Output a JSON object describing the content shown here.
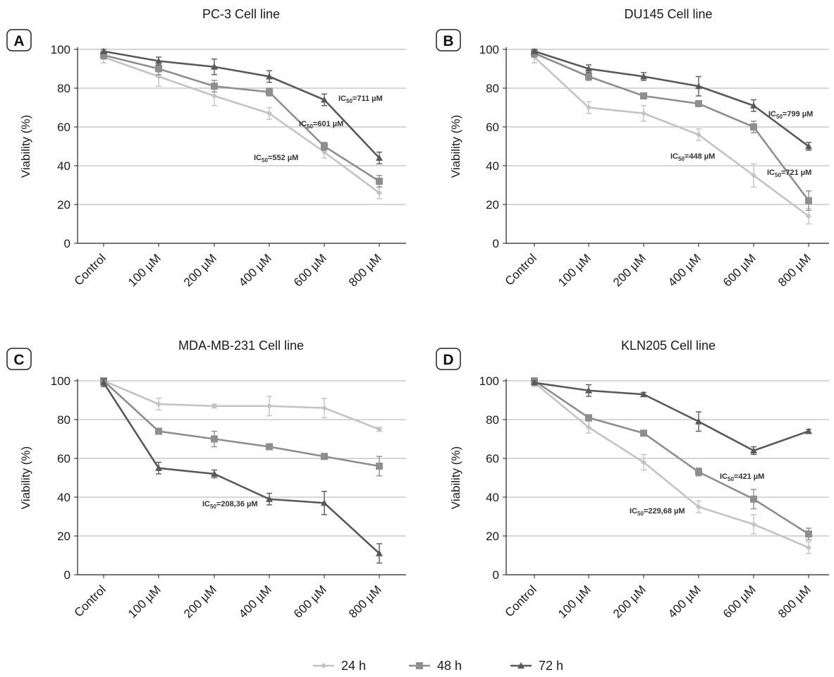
{
  "legend": [
    {
      "label": "24 h",
      "color": "#c3c3c3",
      "marker": "diamond"
    },
    {
      "label": "48 h",
      "color": "#8e8e8e",
      "marker": "square"
    },
    {
      "label": "72 h",
      "color": "#595959",
      "marker": "triangle"
    }
  ],
  "chart_data": [
    {
      "type": "line",
      "panel": "A",
      "title": "PC-3 Cell line",
      "ylabel": "Viability (%)",
      "ylim": [
        0,
        100
      ],
      "yticks": [
        "0",
        "20",
        "40",
        "60",
        "80",
        "100"
      ],
      "categories": [
        "Control",
        "100 µM",
        "200 µM",
        "400 µM",
        "600 µM",
        "800 µM"
      ],
      "grid": true,
      "series": [
        {
          "name": "24 h",
          "values": [
            96,
            86,
            76,
            67,
            47,
            26
          ],
          "errors": [
            3,
            5,
            5,
            3,
            3,
            3
          ]
        },
        {
          "name": "48 h",
          "values": [
            97,
            90,
            81,
            78,
            50,
            32
          ],
          "errors": [
            2,
            3,
            3,
            2,
            2,
            3
          ]
        },
        {
          "name": "72 h",
          "values": [
            99,
            94,
            91,
            86,
            74,
            44
          ],
          "errors": [
            1,
            2,
            4,
            3,
            3,
            3
          ]
        }
      ],
      "annotations": [
        {
          "base": "IC",
          "sub": "50",
          "rest": "=711 µM"
        },
        {
          "base": "IC",
          "sub": "50",
          "rest": "=601 µM"
        },
        {
          "base": "IC",
          "sub": "50",
          "rest": "=552 µM"
        }
      ]
    },
    {
      "type": "line",
      "panel": "B",
      "title": "DU145 Cell line",
      "ylabel": "Viability (%)",
      "ylim": [
        0,
        100
      ],
      "yticks": [
        "0",
        "20",
        "40",
        "60",
        "80",
        "100"
      ],
      "categories": [
        "Control",
        "100 µM",
        "200 µM",
        "400 µM",
        "600 µM",
        "800 µM"
      ],
      "grid": true,
      "series": [
        {
          "name": "24 h",
          "values": [
            96,
            70,
            67,
            56,
            35,
            14
          ],
          "errors": [
            3,
            3,
            4,
            3,
            6,
            4
          ]
        },
        {
          "name": "48 h",
          "values": [
            98,
            86,
            76,
            72,
            60,
            22
          ],
          "errors": [
            2,
            2,
            1,
            1,
            3,
            5
          ]
        },
        {
          "name": "72 h",
          "values": [
            99,
            90,
            86,
            81,
            71,
            50
          ],
          "errors": [
            1,
            2,
            2,
            5,
            3,
            2
          ]
        }
      ],
      "annotations": [
        {
          "base": "IC",
          "sub": "50",
          "rest": "=799 µM"
        },
        {
          "base": "IC",
          "sub": "50",
          "rest": "=448 µM"
        },
        {
          "base": "IC",
          "sub": "50",
          "rest": "=721 µM"
        }
      ]
    },
    {
      "type": "line",
      "panel": "C",
      "title": "MDA-MB-231 Cell line",
      "ylabel": "Viability (%)",
      "ylim": [
        0,
        100
      ],
      "yticks": [
        "0",
        "20",
        "40",
        "60",
        "80",
        "100"
      ],
      "categories": [
        "Control",
        "100 µM",
        "200 µM",
        "400 µM",
        "600 µM",
        "800 µM"
      ],
      "grid": true,
      "series": [
        {
          "name": "24 h",
          "values": [
            100,
            88,
            87,
            87,
            86,
            75
          ],
          "errors": [
            1,
            3,
            1,
            5,
            5,
            1
          ]
        },
        {
          "name": "48 h",
          "values": [
            100,
            74,
            70,
            66,
            61,
            56
          ],
          "errors": [
            1,
            1,
            4,
            1,
            1,
            5
          ]
        },
        {
          "name": "72 h",
          "values": [
            99,
            55,
            52,
            39,
            37,
            11
          ],
          "errors": [
            2,
            3,
            2,
            3,
            6,
            5
          ]
        }
      ],
      "annotations": [
        {
          "base": "IC",
          "sub": "50",
          "rest": "=208,36 µM"
        }
      ]
    },
    {
      "type": "line",
      "panel": "D",
      "title": "KLN205 Cell line",
      "ylabel": "Viability (%)",
      "ylim": [
        0,
        100
      ],
      "yticks": [
        "0",
        "20",
        "40",
        "60",
        "80",
        "100"
      ],
      "categories": [
        "Control",
        "100 µM",
        "200 µM",
        "400 µM",
        "600 µM",
        "800 µM"
      ],
      "grid": true,
      "series": [
        {
          "name": "24 h",
          "values": [
            99,
            76,
            58,
            35,
            26,
            14
          ],
          "errors": [
            2,
            3,
            4,
            3,
            5,
            3
          ]
        },
        {
          "name": "48 h",
          "values": [
            100,
            81,
            73,
            53,
            39,
            21
          ],
          "errors": [
            1,
            1,
            1,
            2,
            5,
            3
          ]
        },
        {
          "name": "72 h",
          "values": [
            99,
            95,
            93,
            79,
            64,
            74
          ],
          "errors": [
            1,
            3,
            1,
            5,
            2,
            1
          ]
        }
      ],
      "annotations": [
        {
          "base": "IC",
          "sub": "50",
          "rest": "=421 µM"
        },
        {
          "base": "IC",
          "sub": "50",
          "rest": "=229,68 µM"
        }
      ]
    }
  ]
}
